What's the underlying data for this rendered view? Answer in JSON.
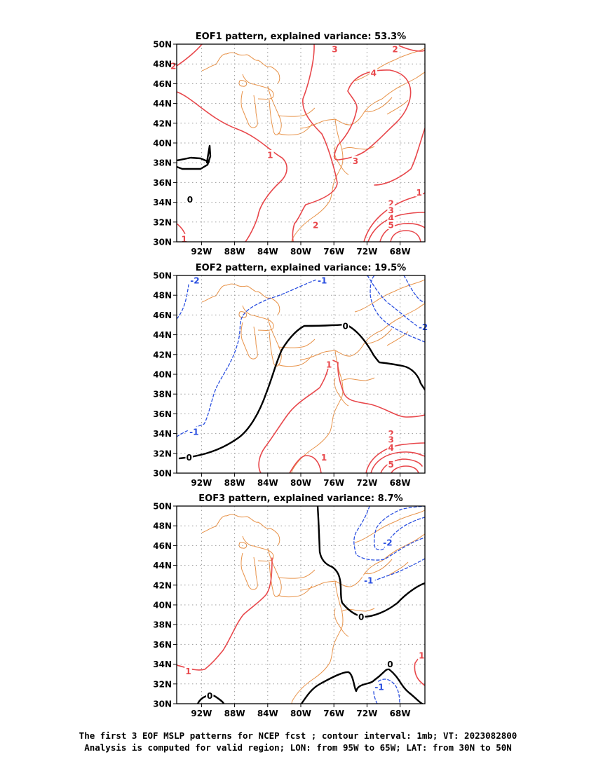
{
  "chart_data": [
    {
      "type": "contour",
      "title": "EOF1 pattern, explained variance: 53.3%",
      "lon_range": [
        -95,
        -65
      ],
      "lat_range": [
        30,
        50
      ],
      "x_ticks": [
        "92W",
        "88W",
        "84W",
        "80W",
        "76W",
        "72W",
        "68W"
      ],
      "y_ticks": [
        "30N",
        "32N",
        "34N",
        "36N",
        "38N",
        "40N",
        "42N",
        "44N",
        "46N",
        "48N",
        "50N"
      ],
      "grid": "dotted",
      "contour_labels": [
        {
          "value": "0",
          "lon": -93.4,
          "lat": 34.3,
          "kind": "zero"
        },
        {
          "value": "1",
          "lon": -83.7,
          "lat": 38.8,
          "kind": "pos"
        },
        {
          "value": "1",
          "lon": -94.1,
          "lat": 30.3,
          "kind": "pos"
        },
        {
          "value": "2",
          "lon": -95.4,
          "lat": 47.8,
          "kind": "pos"
        },
        {
          "value": "3",
          "lon": -75.9,
          "lat": 49.5,
          "kind": "pos"
        },
        {
          "value": "4",
          "lon": -71.2,
          "lat": 47.1,
          "kind": "pos"
        },
        {
          "value": "3",
          "lon": -73.4,
          "lat": 38.2,
          "kind": "pos"
        },
        {
          "value": "2",
          "lon": -78.2,
          "lat": 31.7,
          "kind": "pos"
        },
        {
          "value": "2",
          "lon": -68.6,
          "lat": 49.5,
          "kind": "pos"
        },
        {
          "value": "1",
          "lon": -65.7,
          "lat": 35.0,
          "kind": "pos"
        },
        {
          "value": "2",
          "lon": -69.1,
          "lat": 33.9,
          "kind": "pos"
        },
        {
          "value": "3",
          "lon": -69.1,
          "lat": 33.2,
          "kind": "pos"
        },
        {
          "value": "4",
          "lon": -69.1,
          "lat": 32.4,
          "kind": "pos"
        },
        {
          "value": "5",
          "lon": -69.1,
          "lat": 31.7,
          "kind": "pos"
        }
      ]
    },
    {
      "type": "contour",
      "title": "EOF2 pattern, explained variance: 19.5%",
      "lon_range": [
        -95,
        -65
      ],
      "lat_range": [
        30,
        50
      ],
      "x_ticks": [
        "92W",
        "88W",
        "84W",
        "80W",
        "76W",
        "72W",
        "68W"
      ],
      "y_ticks": [
        "30N",
        "32N",
        "34N",
        "36N",
        "38N",
        "40N",
        "42N",
        "44N",
        "46N",
        "48N",
        "50N"
      ],
      "grid": "dotted",
      "contour_labels": [
        {
          "value": "-2",
          "lon": -92.8,
          "lat": 49.5,
          "kind": "neg"
        },
        {
          "value": "-1",
          "lon": -77.4,
          "lat": 49.5,
          "kind": "neg"
        },
        {
          "value": "-1",
          "lon": -92.9,
          "lat": 34.2,
          "kind": "neg"
        },
        {
          "value": "-2",
          "lon": -65.2,
          "lat": 44.8,
          "kind": "neg"
        },
        {
          "value": "0",
          "lon": -93.5,
          "lat": 31.6,
          "kind": "zero"
        },
        {
          "value": "0",
          "lon": -74.6,
          "lat": 44.9,
          "kind": "zero"
        },
        {
          "value": "1",
          "lon": -76.6,
          "lat": 41.0,
          "kind": "pos"
        },
        {
          "value": "1",
          "lon": -77.2,
          "lat": 31.6,
          "kind": "pos"
        },
        {
          "value": "2",
          "lon": -69.1,
          "lat": 34.0,
          "kind": "pos"
        },
        {
          "value": "3",
          "lon": -69.1,
          "lat": 33.4,
          "kind": "pos"
        },
        {
          "value": "4",
          "lon": -69.1,
          "lat": 32.6,
          "kind": "pos"
        },
        {
          "value": "5",
          "lon": -69.1,
          "lat": 30.9,
          "kind": "pos"
        }
      ]
    },
    {
      "type": "contour",
      "title": "EOF3 pattern, explained variance: 8.7%",
      "lon_range": [
        -95,
        -65
      ],
      "lat_range": [
        30,
        50
      ],
      "x_ticks": [
        "92W",
        "88W",
        "84W",
        "80W",
        "76W",
        "72W",
        "68W"
      ],
      "y_ticks": [
        "30N",
        "32N",
        "34N",
        "36N",
        "38N",
        "40N",
        "42N",
        "44N",
        "46N",
        "48N",
        "50N"
      ],
      "grid": "dotted",
      "contour_labels": [
        {
          "value": "-2",
          "lon": -69.5,
          "lat": 46.3,
          "kind": "neg"
        },
        {
          "value": "-1",
          "lon": -71.8,
          "lat": 42.5,
          "kind": "neg"
        },
        {
          "value": "-1",
          "lon": -70.5,
          "lat": 31.7,
          "kind": "neg"
        },
        {
          "value": "0",
          "lon": -72.7,
          "lat": 38.8,
          "kind": "zero"
        },
        {
          "value": "0",
          "lon": -69.2,
          "lat": 34.0,
          "kind": "zero"
        },
        {
          "value": "0",
          "lon": -91.0,
          "lat": 30.8,
          "kind": "zero"
        },
        {
          "value": "1",
          "lon": -93.6,
          "lat": 33.3,
          "kind": "pos"
        },
        {
          "value": "1",
          "lon": -65.4,
          "lat": 34.9,
          "kind": "pos"
        }
      ]
    }
  ],
  "footer": {
    "line1": "The first 3 EOF MSLP patterns for NCEP fcst ; contour interval: 1mb; VT: 2023082800",
    "line2": "Analysis is computed for valid region; LON: from 95W to 65W; LAT: from 30N to 50N"
  },
  "colors": {
    "positive": "#e8474b",
    "negative": "#2a4fe0",
    "zero": "#000000",
    "coast": "#e8934a",
    "grid": "#9a9a9a"
  }
}
